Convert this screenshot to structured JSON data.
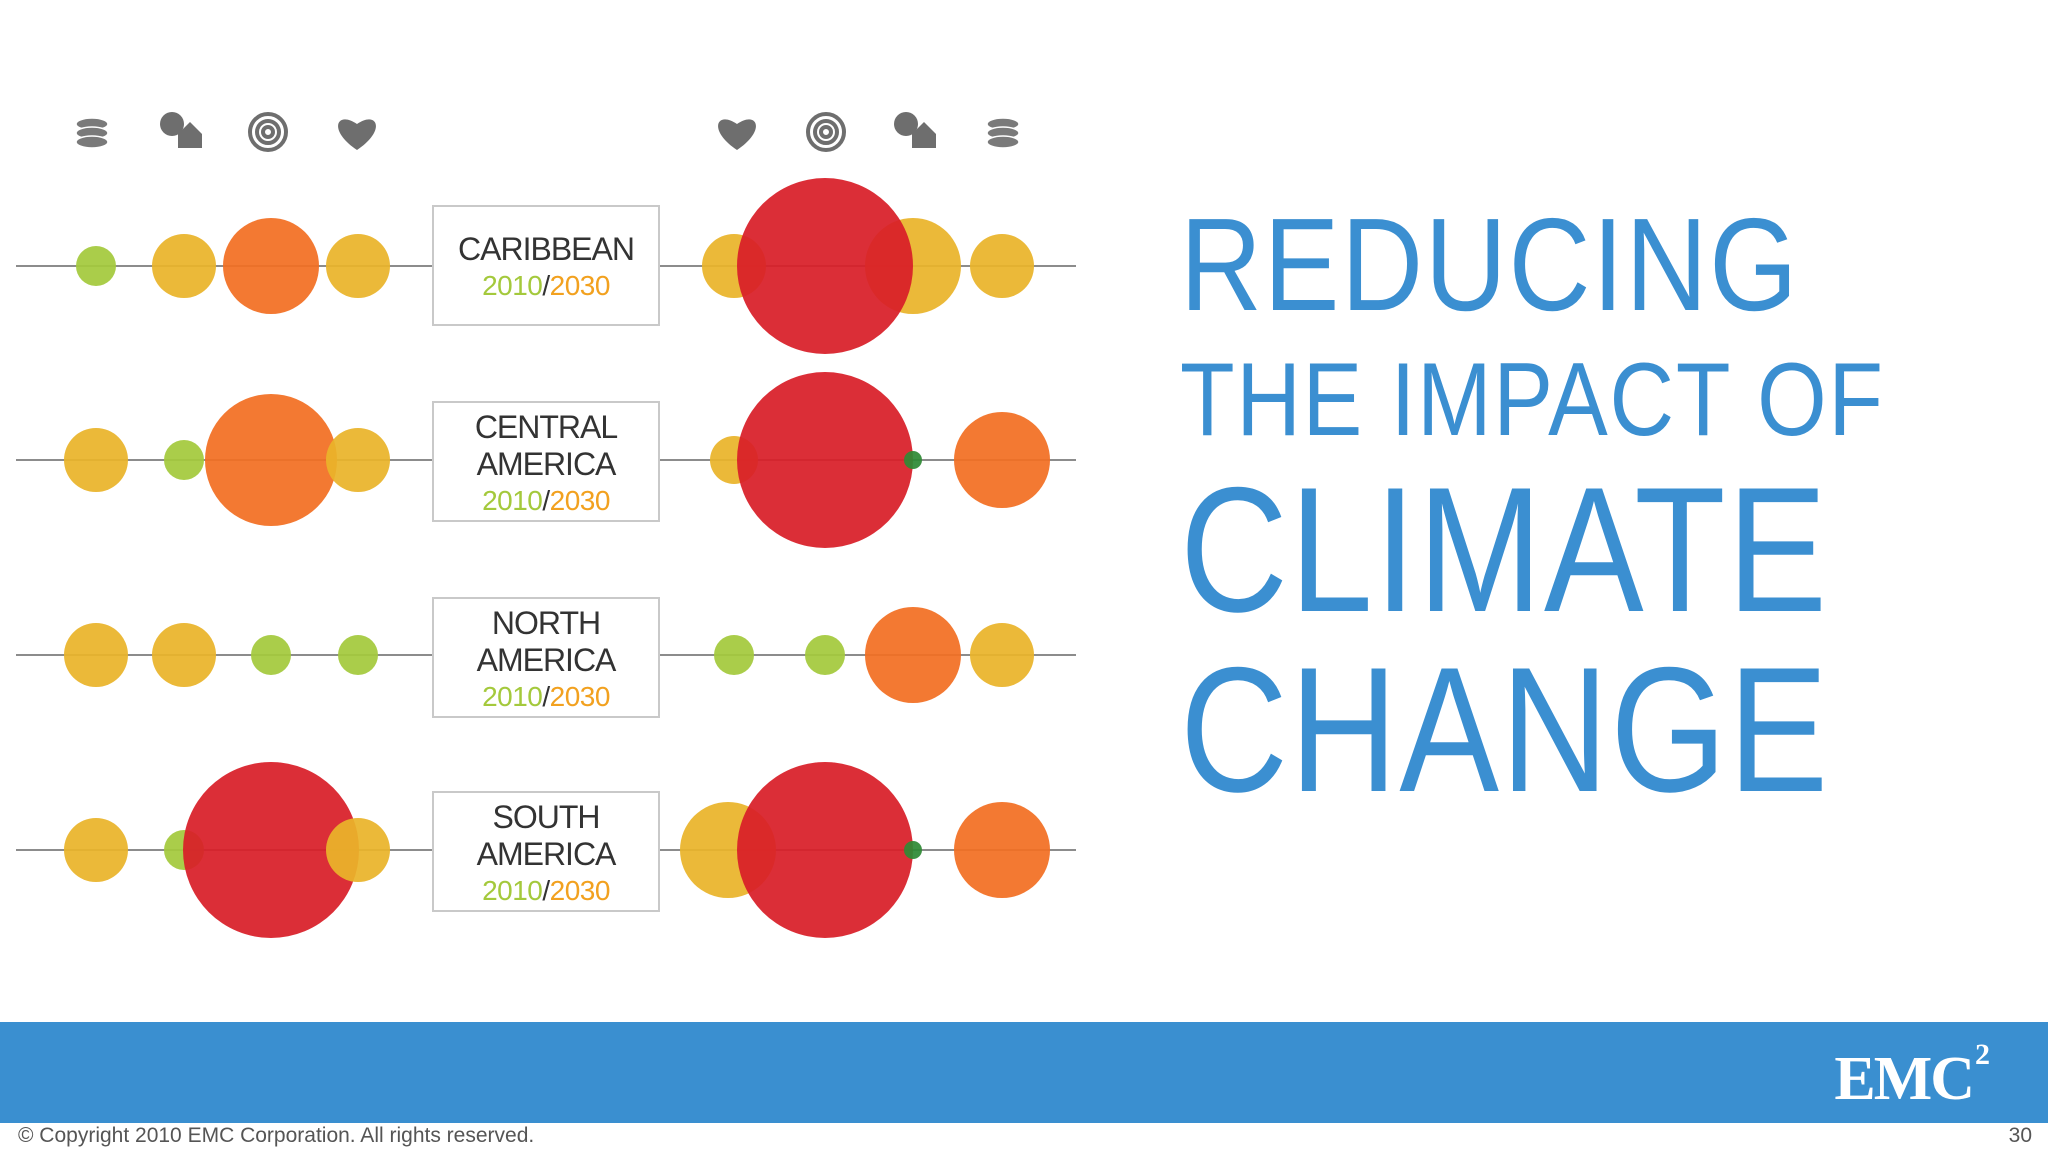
{
  "icons": {
    "left": [
      "coins-icon",
      "tree-house-icon",
      "spiral-icon",
      "heart-icon"
    ],
    "right": [
      "heart-icon",
      "spiral-icon",
      "tree-house-icon",
      "coins-icon"
    ]
  },
  "regions": [
    {
      "name": "CARIBBEAN",
      "year_a": "2010",
      "slash": "/",
      "year_b": "2030"
    },
    {
      "name": "CENTRAL\nAMERICA",
      "year_a": "2010",
      "slash": "/",
      "year_b": "2030"
    },
    {
      "name": "NORTH\nAMERICA",
      "year_a": "2010",
      "slash": "/",
      "year_b": "2030"
    },
    {
      "name": "SOUTH\nAMERICA",
      "year_a": "2010",
      "slash": "/",
      "year_b": "2030"
    }
  ],
  "colors": {
    "green": "#a4c93c",
    "yellow": "#eab42a",
    "orange": "#f26f22",
    "red": "#d81e28",
    "dark_green": "#2f8a35",
    "accent_blue": "#3a8fd0"
  },
  "bubbles": {
    "caribbean": {
      "left": [
        "green",
        "yellow",
        "orange",
        "yellow"
      ],
      "right": [
        "yellow",
        "red",
        "yellow",
        "yellow"
      ]
    },
    "central_america": {
      "left": [
        "yellow",
        "green",
        "orange",
        "yellow"
      ],
      "right": [
        "yellow",
        "red",
        "dark_green",
        "orange"
      ]
    },
    "north_america": {
      "left": [
        "yellow",
        "yellow",
        "green",
        "green"
      ],
      "right": [
        "green",
        "green",
        "orange",
        "yellow"
      ]
    },
    "south_america": {
      "left": [
        "yellow",
        "green",
        "red",
        "yellow"
      ],
      "right": [
        "yellow",
        "red",
        "dark_green",
        "orange"
      ]
    }
  },
  "title": {
    "line1": "REDUCING",
    "line2": "THE IMPACT OF",
    "line3": "CLIMATE",
    "line4": "CHANGE"
  },
  "footer": {
    "logo": "EMC",
    "logo_sup": "2",
    "copyright": "© Copyright 2010 EMC Corporation. All rights reserved.",
    "page_number": "30"
  }
}
